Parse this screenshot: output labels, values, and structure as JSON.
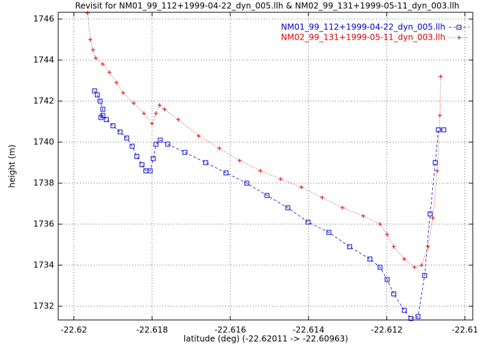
{
  "chart_data": {
    "type": "line",
    "title": "Revisit for NM01_99_112+1999-04-22_dyn_005.llh & NM02_99_131+1999-05-11_dyn_003.llh",
    "x_label": "latitude (deg) (-22.62011 -> -22.60963)",
    "y_label": "height (m)",
    "xlim": [
      -22.6204,
      -22.6098
    ],
    "ylim": [
      1731.33,
      1746.33
    ],
    "xticks": [
      -22.62,
      -22.618,
      -22.616,
      -22.614,
      -22.612,
      -22.61
    ],
    "yticks": [
      1732,
      1734,
      1736,
      1738,
      1740,
      1742,
      1744,
      1746
    ],
    "grid": true,
    "legend": "top-right",
    "series": [
      {
        "name": "NM01_99_112+1999-04-22_dyn_005.llh",
        "color": "#0000cc",
        "marker": "square",
        "line": "dashed",
        "x": [
          -22.61947,
          -22.6194,
          -22.61933,
          -22.61926,
          -22.61931,
          -22.61926,
          -22.61917,
          -22.619,
          -22.61882,
          -22.61865,
          -22.61851,
          -22.61839,
          -22.61826,
          -22.61816,
          -22.61805,
          -22.61797,
          -22.6179,
          -22.61779,
          -22.6176,
          -22.61716,
          -22.61663,
          -22.61611,
          -22.61558,
          -22.61506,
          -22.61453,
          -22.61401,
          -22.61348,
          -22.61295,
          -22.61243,
          -22.61217,
          -22.61199,
          -22.61182,
          -22.61155,
          -22.61138,
          -22.6112,
          -22.61103,
          -22.61089,
          -22.61076,
          -22.61068,
          -22.61054
        ],
        "values": [
          1742.5,
          1742.3,
          1742.0,
          1741.6,
          1741.2,
          1741.3,
          1741.1,
          1740.8,
          1740.5,
          1740.2,
          1739.8,
          1739.3,
          1738.9,
          1738.6,
          1738.6,
          1739.2,
          1739.9,
          1740.1,
          1739.9,
          1739.5,
          1739.0,
          1738.5,
          1738.0,
          1737.4,
          1736.8,
          1736.1,
          1735.6,
          1734.9,
          1734.3,
          1733.9,
          1733.3,
          1732.6,
          1731.8,
          1731.4,
          1731.5,
          1733.5,
          1736.5,
          1739.0,
          1740.6,
          1740.6
        ]
      },
      {
        "name": "NM02_99_131+1999-05-11_dyn_003.llh",
        "color": "#dd0000",
        "marker": "plus",
        "line": "dotted",
        "x": [
          -22.61965,
          -22.61958,
          -22.61951,
          -22.61944,
          -22.61926,
          -22.61909,
          -22.61891,
          -22.61874,
          -22.61847,
          -22.61821,
          -22.618,
          -22.6179,
          -22.61781,
          -22.61768,
          -22.61733,
          -22.61681,
          -22.61628,
          -22.61576,
          -22.61523,
          -22.61471,
          -22.61418,
          -22.61365,
          -22.61313,
          -22.6126,
          -22.61217,
          -22.61199,
          -22.61182,
          -22.61155,
          -22.61129,
          -22.61111,
          -22.61094,
          -22.61082,
          -22.61071,
          -22.61064,
          -22.61062
        ],
        "values": [
          1746.3,
          1745.0,
          1744.5,
          1744.1,
          1743.8,
          1743.4,
          1742.9,
          1742.4,
          1741.9,
          1741.4,
          1740.9,
          1741.4,
          1741.8,
          1741.6,
          1741.1,
          1740.3,
          1739.7,
          1739.1,
          1738.6,
          1738.2,
          1737.8,
          1737.3,
          1736.8,
          1736.4,
          1736.0,
          1735.5,
          1734.9,
          1734.3,
          1733.9,
          1734.0,
          1734.9,
          1736.3,
          1738.6,
          1741.3,
          1743.2
        ]
      }
    ]
  }
}
